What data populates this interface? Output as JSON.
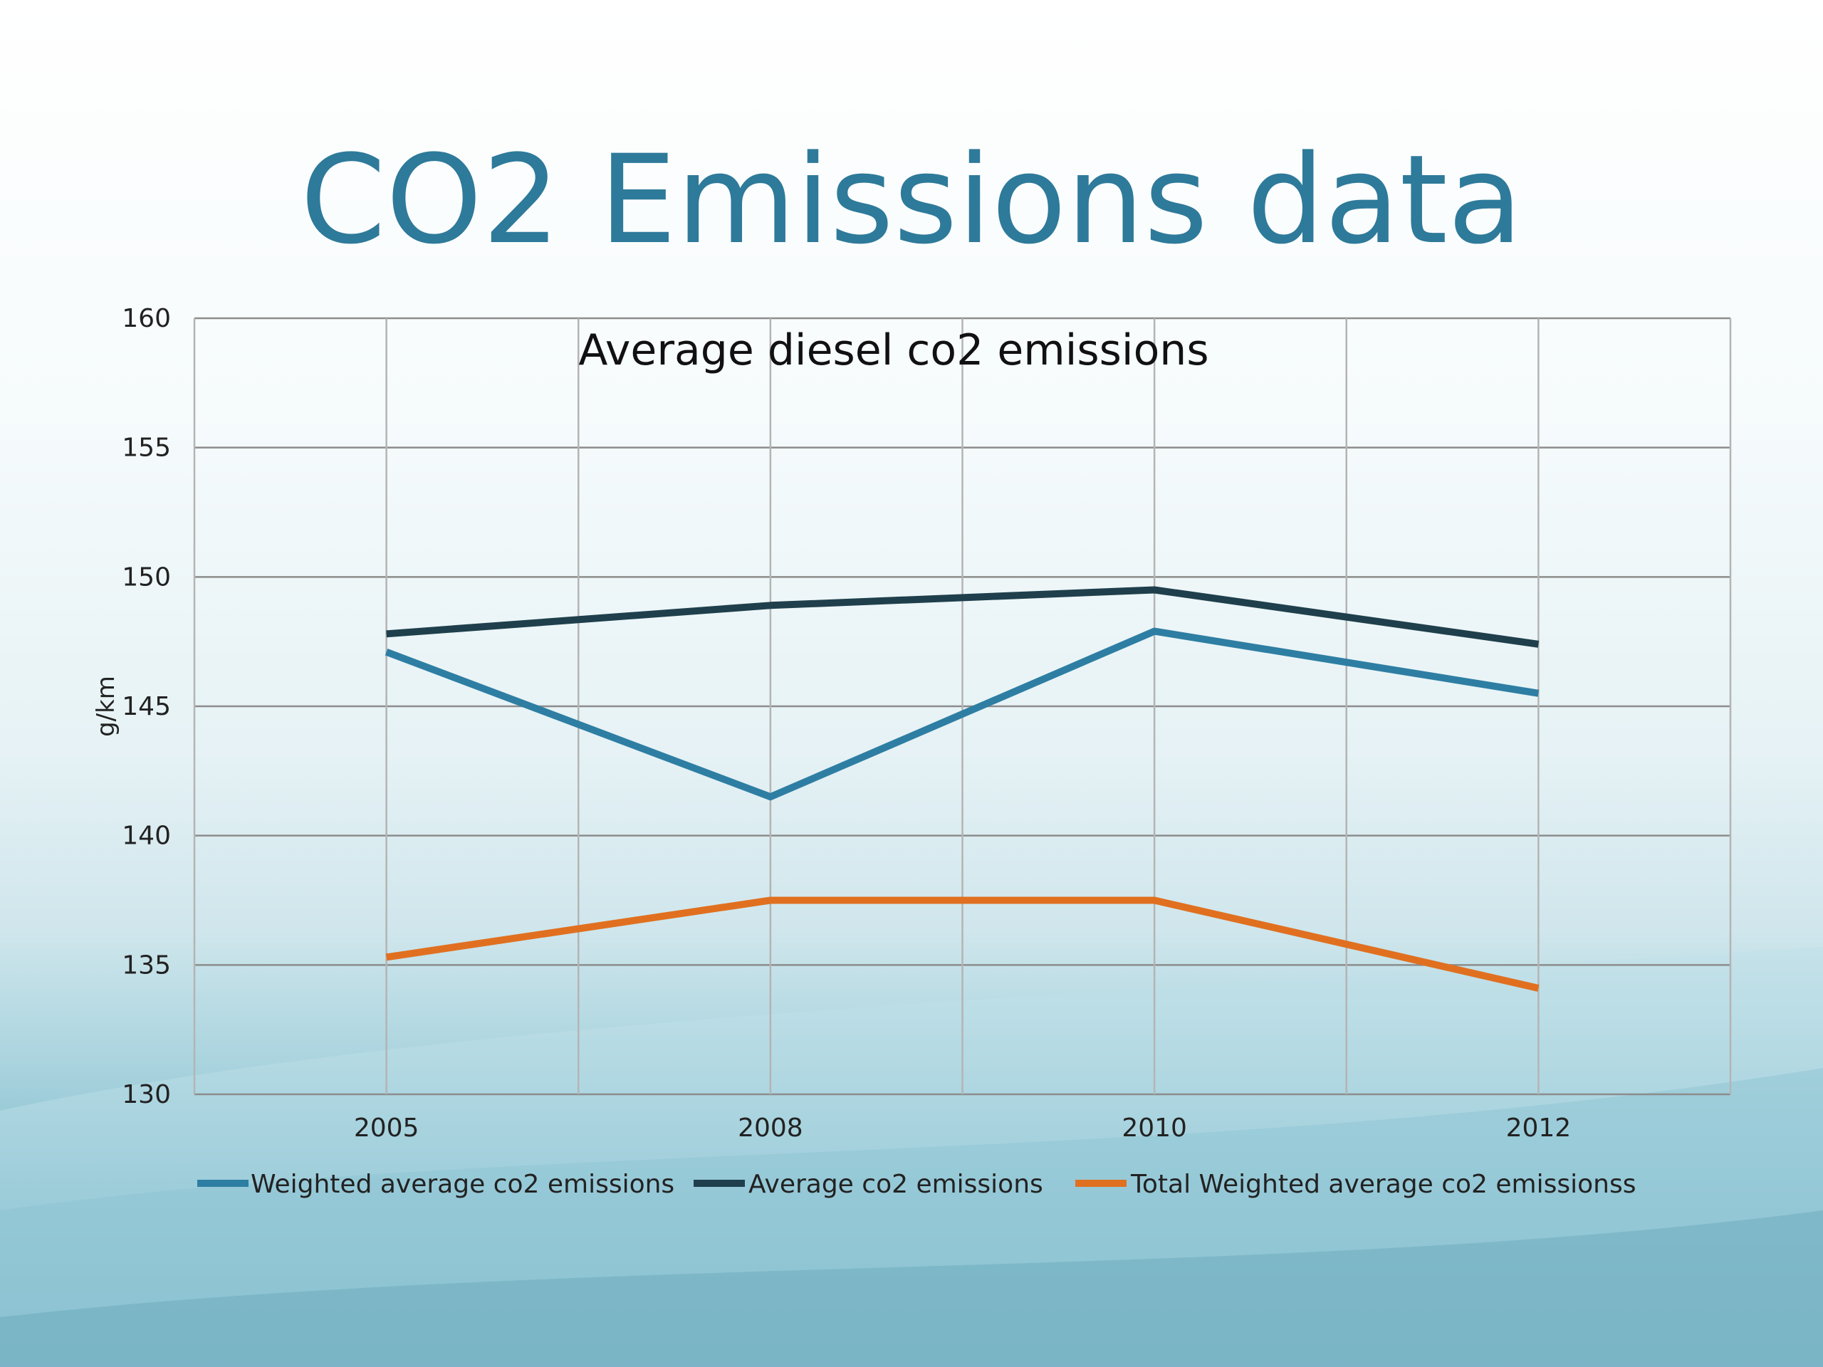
{
  "slide": {
    "title": "CO2 Emissions data"
  },
  "chart_data": {
    "type": "line",
    "title": "Average diesel co2 emissions",
    "xlabel": "",
    "ylabel": "g/km",
    "x": [
      "2005",
      "2008",
      "2010",
      "2012"
    ],
    "ylim": [
      130,
      160
    ],
    "yticks": [
      130,
      135,
      140,
      145,
      150,
      155,
      160
    ],
    "grid": true,
    "legend_position": "bottom",
    "series": [
      {
        "name": "Weighted average co2 emissions",
        "values": [
          147.1,
          141.5,
          147.9,
          145.5
        ],
        "color": "#2e7ea3"
      },
      {
        "name": "Average co2 emissions",
        "values": [
          147.8,
          148.9,
          149.5,
          147.4
        ],
        "color": "#1f3f4c"
      },
      {
        "name": "Total Weighted average co2 emissionss",
        "values": [
          135.3,
          137.5,
          137.5,
          134.1
        ],
        "color": "#e07020"
      }
    ]
  }
}
